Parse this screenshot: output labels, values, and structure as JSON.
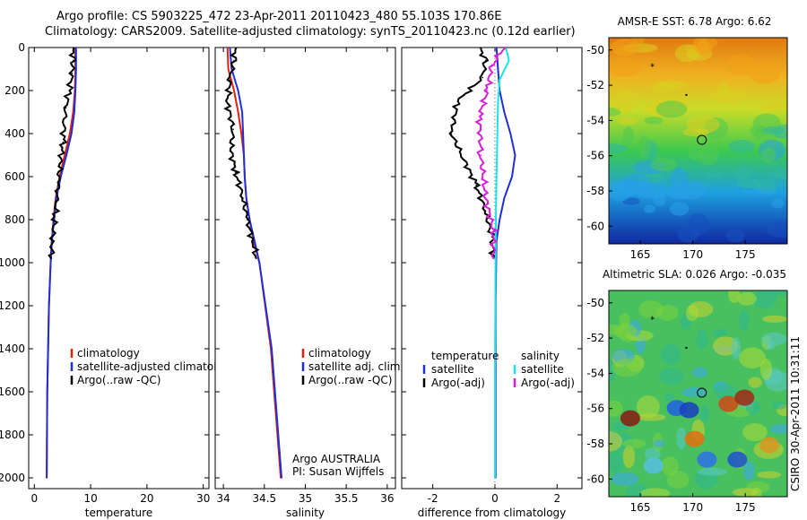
{
  "header": {
    "line1": "Argo profile: CS 5903225_472 23-Apr-2011 20110423_480 55.103S 170.86E",
    "line2": "Climatology: CARS2009. Satellite-adjusted climatology: synTS_20110423.nc (0.12d earlier)"
  },
  "colors": {
    "climatology": "#e8200a",
    "satellite": "#1f2fd8",
    "argo": "#000000",
    "sal_satellite": "#18e6e6",
    "sal_argo": "#d81fd8"
  },
  "chart_data": [
    {
      "type": "line",
      "xlabel": "temperature",
      "ylabel": "",
      "xlim": [
        -1,
        31
      ],
      "ylim": [
        2050,
        0
      ],
      "xticks": [
        "0",
        "10",
        "20",
        "30"
      ],
      "yticks": [
        "0",
        "200",
        "400",
        "600",
        "800",
        "1000",
        "1200",
        "1400",
        "1600",
        "1800",
        "2000"
      ],
      "legend": [
        "climatology",
        "satellite-adjusted climatology",
        "Argo(..raw -QC)"
      ],
      "legend_position": "lower-right",
      "series": [
        {
          "name": "climatology",
          "color_key": "climatology",
          "x": [
            7.3,
            7.3,
            7.2,
            6.9,
            6.3,
            5.4,
            4.5,
            3.8,
            3.4,
            3.1,
            2.9,
            2.6,
            2.3,
            2.2
          ],
          "y": [
            0,
            100,
            200,
            300,
            400,
            500,
            600,
            700,
            800,
            900,
            1000,
            1200,
            1600,
            2000
          ]
        },
        {
          "name": "satellite-adjusted climatology",
          "color_key": "satellite",
          "x": [
            7.4,
            7.4,
            7.3,
            7.1,
            6.6,
            5.7,
            4.7,
            3.9,
            3.5,
            3.1,
            2.9,
            2.6,
            2.3,
            2.2
          ],
          "y": [
            0,
            100,
            200,
            300,
            400,
            500,
            600,
            700,
            800,
            900,
            1000,
            1200,
            1600,
            2000
          ]
        },
        {
          "name": "Argo(..raw -QC)",
          "color_key": "argo",
          "x": [
            6.8,
            6.9,
            6.7,
            6.2,
            5.6,
            5.3,
            5.1,
            4.6,
            4.2,
            3.9,
            3.6,
            3.2,
            3.0
          ],
          "y": [
            0,
            60,
            120,
            200,
            280,
            360,
            440,
            540,
            640,
            720,
            800,
            900,
            980
          ]
        }
      ]
    },
    {
      "type": "line",
      "xlabel": "salinity",
      "ylabel": "",
      "xlim": [
        33.9,
        36.1
      ],
      "ylim": [
        2050,
        0
      ],
      "xticks": [
        "34",
        "34.5",
        "35",
        "35.5",
        "36"
      ],
      "legend": [
        "climatology",
        "satellite adj. clim.",
        "Argo(..raw -QC)"
      ],
      "legend_position": "lower-right",
      "annotation": [
        "Argo AUSTRALIA",
        "PI: Susan Wijffels"
      ],
      "series": [
        {
          "name": "climatology",
          "color_key": "climatology",
          "x": [
            34.05,
            34.06,
            34.13,
            34.18,
            34.22,
            34.25,
            34.26,
            34.28,
            34.32,
            34.37,
            34.44,
            34.58,
            34.7
          ],
          "y": [
            0,
            100,
            200,
            300,
            400,
            500,
            600,
            700,
            800,
            900,
            1000,
            1400,
            2000
          ]
        },
        {
          "name": "satellite adj. clim.",
          "color_key": "satellite",
          "x": [
            34.08,
            34.1,
            34.18,
            34.23,
            34.24,
            34.25,
            34.26,
            34.28,
            34.32,
            34.38,
            34.44,
            34.59,
            34.71
          ],
          "y": [
            0,
            100,
            200,
            300,
            400,
            500,
            600,
            700,
            800,
            900,
            1000,
            1400,
            2000
          ]
        },
        {
          "name": "Argo(..raw -QC)",
          "color_key": "argo",
          "x": [
            34.14,
            34.13,
            34.08,
            34.05,
            34.12,
            34.09,
            34.15,
            34.24,
            34.29,
            34.36,
            34.4
          ],
          "y": [
            0,
            60,
            150,
            260,
            380,
            480,
            580,
            700,
            800,
            900,
            980
          ]
        }
      ]
    },
    {
      "type": "line",
      "xlabel": "difference from climatology",
      "ylabel": "",
      "xlim": [
        -3.0,
        2.8
      ],
      "ylim": [
        2050,
        0
      ],
      "xticks": [
        "-2",
        "0",
        "2"
      ],
      "legend": [
        "temperature",
        "satellite",
        "Argo(-adj)",
        "salinity",
        "satellite",
        "Argo(-adj)"
      ],
      "legend_position": "lower-middle",
      "series": [
        {
          "name": "temperature satellite",
          "color_key": "satellite",
          "x": [
            0.05,
            0.1,
            0.15,
            0.3,
            0.5,
            0.65,
            0.55,
            0.3,
            0.15,
            0.05,
            0.02,
            0.02
          ],
          "y": [
            0,
            100,
            200,
            300,
            400,
            500,
            600,
            700,
            800,
            900,
            1200,
            2000
          ]
        },
        {
          "name": "temperature Argo(-adj)",
          "color_key": "argo",
          "x": [
            -0.5,
            -0.3,
            -0.4,
            -1.2,
            -1.4,
            -1.0,
            -0.6,
            -0.3,
            -0.1,
            -0.05
          ],
          "y": [
            0,
            60,
            140,
            250,
            400,
            520,
            640,
            760,
            880,
            980
          ]
        },
        {
          "name": "salinity satellite",
          "color_key": "sal_satellite",
          "x": [
            0.35,
            0.45,
            0.15,
            0.1,
            0.08,
            0.05,
            0.03,
            0.02,
            0.0,
            0.0
          ],
          "y": [
            0,
            60,
            150,
            250,
            400,
            600,
            800,
            1000,
            1500,
            2000
          ]
        },
        {
          "name": "salinity Argo(-adj)",
          "color_key": "sal_argo",
          "x": [
            0.3,
            -0.1,
            -0.25,
            -0.5,
            -0.45,
            -0.3,
            -0.05,
            -0.04
          ],
          "y": [
            0,
            80,
            200,
            320,
            500,
            700,
            850,
            980
          ]
        }
      ]
    },
    {
      "type": "heatmap",
      "title": "AMSR-E SST: 6.78 Argo: 6.62",
      "xlim": [
        162,
        179
      ],
      "ylim": [
        -61,
        -49.3
      ],
      "xticks": [
        "165",
        "170",
        "175"
      ],
      "yticks": [
        "-50",
        "-52",
        "-54",
        "-56",
        "-58",
        "-60"
      ],
      "marker": {
        "lon": 170.86,
        "lat": -55.1
      }
    },
    {
      "type": "heatmap",
      "title": "Altimetric SLA: 0.026 Argo: -0.035",
      "xlim": [
        162,
        179
      ],
      "ylim": [
        -61,
        -49.3
      ],
      "xticks": [
        "165",
        "170",
        "175"
      ],
      "yticks": [
        "-50",
        "-52",
        "-54",
        "-56",
        "-58",
        "-60"
      ],
      "marker": {
        "lon": 170.86,
        "lat": -55.1
      },
      "side_label": "CSIRO 30-Apr-2011 10:31:11"
    }
  ]
}
